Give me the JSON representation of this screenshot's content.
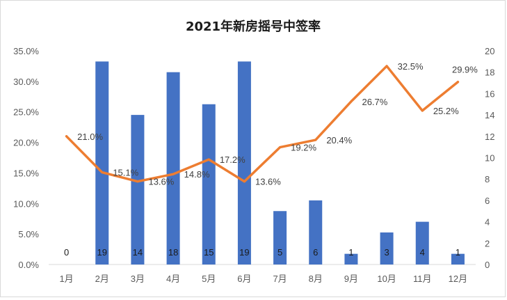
{
  "chart_data": {
    "type": "bar",
    "title": "2021年新房摇号中签率",
    "categories": [
      "1月",
      "2月",
      "3月",
      "4月",
      "5月",
      "6月",
      "7月",
      "8月",
      "9月",
      "10月",
      "11月",
      "12月"
    ],
    "series": [
      {
        "type": "bar",
        "axis": "right",
        "color": "#4472c4",
        "values": [
          0,
          19,
          14,
          18,
          15,
          19,
          5,
          6,
          1,
          3,
          4,
          1
        ],
        "labels": [
          "0",
          "19",
          "14",
          "18",
          "15",
          "19",
          "5",
          "6",
          "1",
          "3",
          "4",
          "1"
        ]
      },
      {
        "type": "line",
        "axis": "left",
        "color": "#ed7d31",
        "values": [
          21.0,
          15.1,
          13.6,
          14.8,
          17.2,
          13.6,
          19.2,
          20.4,
          26.7,
          32.5,
          25.2,
          29.9
        ],
        "labels": [
          "21.0%",
          "15.1%",
          "13.6%",
          "14.8%",
          "17.2%",
          "13.6%",
          "19.2%",
          "20.4%",
          "26.7%",
          "32.5%",
          "25.2%",
          "29.9%"
        ]
      }
    ],
    "y_left": {
      "ylim": [
        0,
        35
      ],
      "ticks": [
        "0.0%",
        "5.0%",
        "10.0%",
        "15.0%",
        "20.0%",
        "25.0%",
        "30.0%",
        "35.0%"
      ]
    },
    "y_right": {
      "ylim": [
        0,
        20
      ],
      "ticks": [
        "0",
        "2",
        "4",
        "6",
        "8",
        "10",
        "12",
        "14",
        "16",
        "18",
        "20"
      ]
    },
    "grid": false,
    "legend": "none"
  }
}
